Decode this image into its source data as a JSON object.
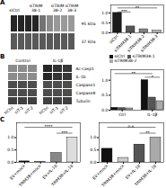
{
  "chart_data": [
    {
      "type": "heatmap",
      "title": "A",
      "categories": [
        "siCtrl",
        null,
        null,
        "siTRIM\n38-1",
        null,
        null,
        "siTRIM\n38-2",
        null,
        "siTRIM\n38-3"
      ],
      "rows": [
        "95 kDa",
        "37 kDa"
      ],
      "cells": [
        [
          0.15,
          0.15,
          0.15,
          0.15,
          0.45,
          0.55,
          0.6,
          0.6,
          0.6
        ],
        [
          0.35,
          0.35,
          0.35,
          0.35,
          0.35,
          0.35,
          0.35,
          0.35,
          0.35
        ]
      ]
    },
    {
      "type": "bar",
      "categories": [
        "siCtrl",
        "siTRIM38-1",
        "siTRIM38-2",
        "siTRIM38-3"
      ],
      "values": [
        1.0,
        0.32,
        0.18,
        0.12
      ],
      "colors": [
        "#1a1a1a",
        "#555555",
        "#888888",
        "#c0c0c0"
      ],
      "ylim": [
        0,
        1.4
      ],
      "yticks": [
        {
          "value": 0,
          "label": "0.0"
        },
        0.5,
        {
          "value": 1.0,
          "label": "1.0"
        }
      ],
      "annotations": [
        {
          "text": "**",
          "from": "siCtrl",
          "to": "siTRIM38-3",
          "y": 1.25
        },
        {
          "text": "***",
          "from": "siCtrl",
          "to": "siTRIM38-1",
          "y": 1.05
        }
      ]
    },
    {
      "type": "heatmap",
      "title": "B",
      "groups": [
        {
          "label": "Control",
          "categories": [
            "siCtrl",
            "siT-1",
            "siT-2"
          ]
        },
        {
          "label": "IL-1β",
          "categories": [
            "siCtrl",
            "siT-1",
            "siT-2"
          ]
        }
      ],
      "rows": [
        "Ac-casp1",
        "IL-1b",
        "Caspase1",
        "Caspase8",
        "Tubulin"
      ],
      "cells": [
        [
          0.55,
          0.55,
          0.55,
          0.15,
          0.2,
          0.22
        ],
        [
          0.55,
          0.55,
          0.55,
          0.15,
          0.2,
          0.22
        ],
        [
          0.3,
          0.3,
          0.3,
          0.3,
          0.3,
          0.3
        ],
        [
          0.3,
          0.3,
          0.3,
          0.3,
          0.3,
          0.3
        ],
        [
          0.25,
          0.25,
          0.25,
          0.25,
          0.25,
          0.25
        ]
      ]
    },
    {
      "type": "bar",
      "categories": [
        "Ctrl",
        "IL-1β"
      ],
      "series": [
        {
          "name": "siCtrl",
          "color": "#111111",
          "values": [
            0.08,
            1.0
          ]
        },
        {
          "name": "siTRIM38-1",
          "color": "#555555",
          "values": [
            0.07,
            0.42
          ]
        },
        {
          "name": "siTRIM38-2",
          "color": "#aaaaaa",
          "values": [
            0.06,
            0.3
          ]
        }
      ],
      "legend": "upper left",
      "ylim": [
        0,
        1.35
      ],
      "yticks": [
        {
          "value": 0,
          "label": "0.0"
        },
        0.5,
        {
          "value": 1.0,
          "label": "1.0"
        }
      ],
      "annotations": [
        {
          "text": "*",
          "from": {
            "category": "IL-1β",
            "series": "siCtrl"
          },
          "to": {
            "category": "IL-1β",
            "series": "siTRIM38-2"
          },
          "y": 1.1
        },
        {
          "text": "**",
          "from": {
            "category": "Ctrl",
            "series": "siCtrl"
          },
          "to": {
            "category": "IL-1β",
            "series": "siTRIM38-1"
          },
          "y": 1.22
        }
      ]
    },
    {
      "type": "bar",
      "title": "C",
      "categories": [
        "EV+mock",
        "TRIM38+mock",
        "EV+IL-1b",
        "TRIM38+IL-1b"
      ],
      "values": [
        0.04,
        0.03,
        0.38,
        1.0
      ],
      "colors": [
        "#111111",
        "#cccccc",
        "#888888",
        "#dddddd"
      ],
      "ylim": [
        0,
        1.6
      ],
      "yticks": [
        {
          "value": 0,
          "label": "0.0"
        },
        0.5,
        {
          "value": 1.0,
          "label": "1.0"
        }
      ],
      "annotations": [
        {
          "text": "****",
          "from": "EV+mock",
          "to": "TRIM38+IL-1b",
          "y": 1.42
        },
        {
          "text": "***",
          "from": "EV+IL-1b",
          "to": "TRIM38+IL-1b",
          "y": 1.18
        }
      ]
    },
    {
      "type": "bar",
      "categories": [
        "EV+mock",
        "TRIM38+mock",
        "EV+IL-1b",
        "TRIM38+IL-1b"
      ],
      "values": [
        0.55,
        0.18,
        0.72,
        1.0
      ],
      "colors": [
        "#111111",
        "#cccccc",
        "#555555",
        "#aaaaaa"
      ],
      "ylim": [
        0,
        1.6
      ],
      "yticks": [
        {
          "value": 0,
          "label": "0.0"
        },
        0.5,
        {
          "value": 1.0,
          "label": "1.0"
        }
      ],
      "annotations": [
        {
          "text": "n.s.",
          "from": "EV+mock",
          "to": "TRIM38+IL-1b",
          "y": 1.42
        },
        {
          "text": "**",
          "from": "EV+IL-1b",
          "to": "TRIM38+IL-1b",
          "y": 1.18
        }
      ]
    }
  ]
}
